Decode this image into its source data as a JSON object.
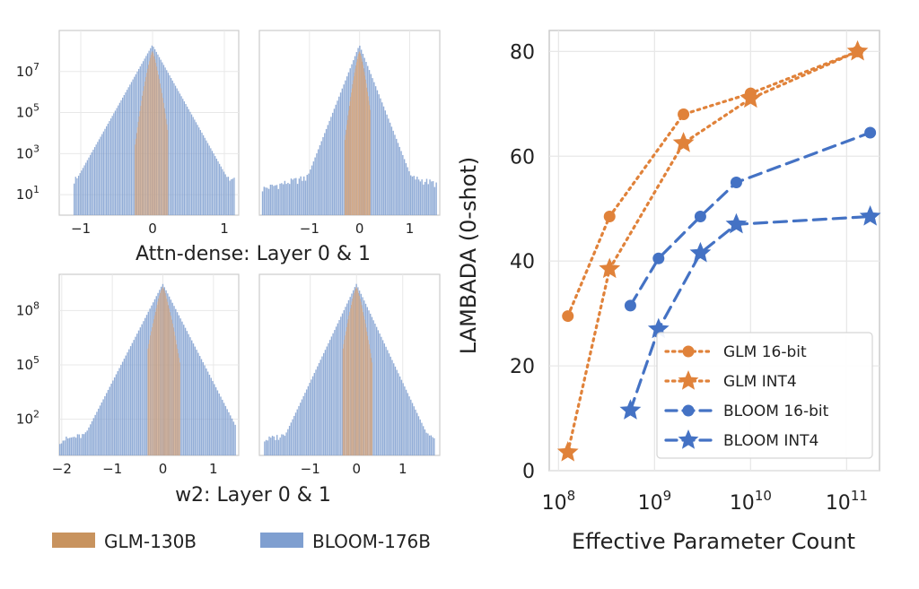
{
  "colors": {
    "glm": "#DDA371",
    "bloom": "#7F9FD0",
    "glm_line": "#E0823A",
    "bloom_line": "#4472C4",
    "grid": "#E8E8E8",
    "frame": "#CCCCCC"
  },
  "bottom_legend": [
    {
      "label": "GLM-130B",
      "color": "#C8935E"
    },
    {
      "label": "BLOOM-176B",
      "color": "#7F9FD0"
    }
  ],
  "captions": {
    "top": "Attn-dense: Layer 0 & 1",
    "bottom": "w2: Layer 0 & 1"
  },
  "chart_data": [
    {
      "type": "histogram",
      "panel": "attn-dense-left",
      "yscale": "log",
      "xlim": [
        -1.3,
        1.2
      ],
      "ylim": [
        1,
        1000000000
      ],
      "xticks": [
        "−1",
        "0",
        "1"
      ],
      "xtick_values": [
        -1,
        0,
        1
      ],
      "yticks": [
        "10^1",
        "10^3",
        "10^5",
        "10^7"
      ],
      "ytick_values": [
        10,
        1000,
        100000,
        10000000
      ],
      "series": [
        {
          "name": "BLOOM-176B",
          "x0": -1.1,
          "x1": 1.15,
          "peak": 200000000,
          "spread": 0.07,
          "tail_width": 0.6,
          "tail_level": 200
        },
        {
          "name": "GLM-130B",
          "x0": -0.25,
          "x1": 0.22,
          "peak": 100000000,
          "spread": 0.04
        }
      ]
    },
    {
      "type": "histogram",
      "panel": "attn-dense-right",
      "yscale": "log",
      "xlim": [
        -2.0,
        1.6
      ],
      "ylim": [
        1,
        1000000000
      ],
      "xticks": [
        "−1",
        "0",
        "1"
      ],
      "xtick_values": [
        -1,
        0,
        1
      ],
      "yticks": [],
      "ytick_values": [],
      "series": [
        {
          "name": "BLOOM-176B",
          "x0": -1.95,
          "x1": 1.55,
          "peak": 200000000,
          "spread": 0.07,
          "tail_width": 0.7,
          "tail_level": 200
        },
        {
          "name": "GLM-130B",
          "x0": -0.3,
          "x1": 0.22,
          "peak": 100000000,
          "spread": 0.05
        }
      ]
    },
    {
      "type": "histogram",
      "panel": "w2-left",
      "yscale": "log",
      "xlim": [
        -2.05,
        1.5
      ],
      "ylim": [
        1,
        10000000000
      ],
      "xticks": [
        "−2",
        "−1",
        "0",
        "1"
      ],
      "xtick_values": [
        -2,
        -1,
        0,
        1
      ],
      "yticks": [
        "10^2",
        "10^5",
        "10^8"
      ],
      "ytick_values": [
        100,
        100000,
        100000000
      ],
      "series": [
        {
          "name": "BLOOM-176B",
          "x0": -2.05,
          "x1": 1.45,
          "peak": 3000000000,
          "spread": 0.08,
          "tail_width": 0.7,
          "tail_level": 80
        },
        {
          "name": "GLM-130B",
          "x0": -0.3,
          "x1": 0.35,
          "peak": 2000000000,
          "spread": 0.06
        }
      ]
    },
    {
      "type": "histogram",
      "panel": "w2-right",
      "yscale": "log",
      "xlim": [
        -2.1,
        1.8
      ],
      "ylim": [
        1,
        10000000000
      ],
      "xticks": [
        "−1",
        "0",
        "1"
      ],
      "xtick_values": [
        -1,
        0,
        1
      ],
      "yticks": [],
      "ytick_values": [],
      "series": [
        {
          "name": "BLOOM-176B",
          "x0": -2.0,
          "x1": 1.7,
          "peak": 3000000000,
          "spread": 0.08,
          "tail_width": 0.7,
          "tail_level": 80
        },
        {
          "name": "GLM-130B",
          "x0": -0.3,
          "x1": 0.35,
          "peak": 2000000000,
          "spread": 0.06
        }
      ]
    },
    {
      "type": "line",
      "panel": "lambada",
      "xscale": "log",
      "xlim": [
        80000000,
        220000000000
      ],
      "ylim": [
        0,
        84
      ],
      "xlabel": "Effective Parameter Count",
      "ylabel": "LAMBADA (0-shot)",
      "xtick_exponents": [
        8,
        9,
        10,
        11
      ],
      "yticks": [
        "0",
        "20",
        "40",
        "60",
        "80"
      ],
      "ytick_values": [
        0,
        20,
        40,
        60,
        80
      ],
      "grid": true,
      "legend_position": "lower-right",
      "series": [
        {
          "name": "GLM 16-bit",
          "marker": "circle",
          "linestyle": "dotted",
          "color": "#E0823A",
          "x": [
            125000000,
            340000000,
            2000000000,
            10000000000,
            130000000000
          ],
          "y": [
            29.5,
            48.5,
            68,
            72,
            80
          ]
        },
        {
          "name": "GLM INT4",
          "marker": "star",
          "linestyle": "dotted",
          "color": "#E0823A",
          "x": [
            125000000,
            340000000,
            2000000000,
            10000000000,
            130000000000
          ],
          "y": [
            3.5,
            38.5,
            62.5,
            71,
            80
          ]
        },
        {
          "name": "BLOOM 16-bit",
          "marker": "circle",
          "linestyle": "dashed",
          "color": "#4472C4",
          "x": [
            560000000,
            1100000000,
            3000000000,
            7100000000,
            176000000000
          ],
          "y": [
            31.5,
            40.5,
            48.5,
            55,
            64.5
          ]
        },
        {
          "name": "BLOOM INT4",
          "marker": "star",
          "linestyle": "dashed",
          "color": "#4472C4",
          "x": [
            560000000,
            1100000000,
            3000000000,
            7100000000,
            176000000000
          ],
          "y": [
            11.5,
            27,
            41.5,
            47,
            48.5
          ]
        }
      ]
    }
  ]
}
